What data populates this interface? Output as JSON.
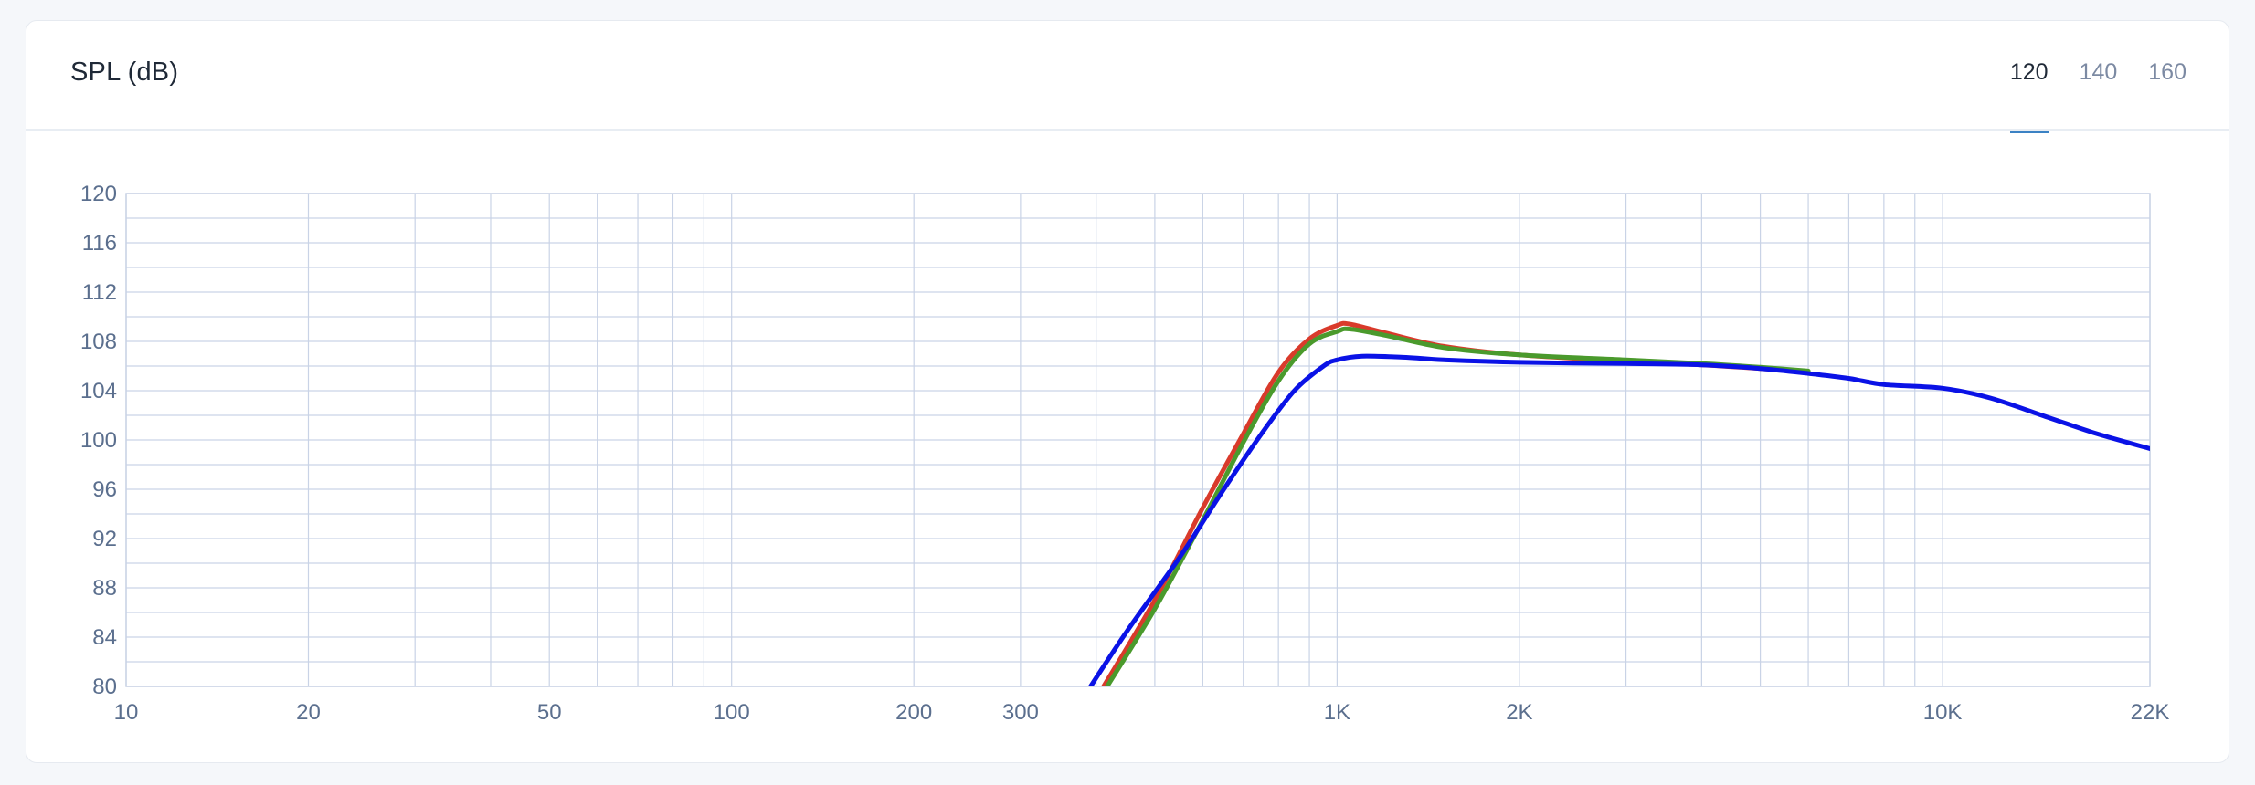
{
  "card": {
    "title": "SPL (dB)",
    "tabs": [
      {
        "label": "120",
        "active": true
      },
      {
        "label": "140",
        "active": false
      },
      {
        "label": "160",
        "active": false
      }
    ]
  },
  "chart_data": {
    "type": "line",
    "title": "SPL (dB)",
    "xscale": "log",
    "xlim": [
      10,
      22000
    ],
    "ylim": [
      80,
      120
    ],
    "grid": true,
    "colors": {
      "grid": "#c9d3e6",
      "tick_text": "#5b6f8e"
    },
    "x_major_ticks": [
      {
        "value": 10,
        "label": "10"
      },
      {
        "value": 20,
        "label": "20"
      },
      {
        "value": 50,
        "label": "50"
      },
      {
        "value": 100,
        "label": "100"
      },
      {
        "value": 200,
        "label": "200"
      },
      {
        "value": 300,
        "label": "300"
      },
      {
        "value": 1000,
        "label": "1K"
      },
      {
        "value": 2000,
        "label": "2K"
      },
      {
        "value": 10000,
        "label": "10K"
      },
      {
        "value": 22000,
        "label": "22K"
      }
    ],
    "x_minor_ticks": [
      30,
      40,
      60,
      70,
      80,
      90,
      400,
      500,
      600,
      700,
      800,
      900,
      3000,
      4000,
      5000,
      6000,
      7000,
      8000,
      9000
    ],
    "y_ticks": [
      80,
      84,
      88,
      92,
      96,
      100,
      104,
      108,
      112,
      116,
      120
    ],
    "y_minor_ticks": [
      82,
      86,
      90,
      94,
      98,
      102,
      106,
      110,
      114,
      118
    ],
    "series": [
      {
        "color": "#d93a2b",
        "points": [
          [
            400,
            79.0
          ],
          [
            500,
            87.0
          ],
          [
            600,
            94.5
          ],
          [
            700,
            100.5
          ],
          [
            800,
            105.5
          ],
          [
            900,
            108.2
          ],
          [
            1000,
            109.3
          ],
          [
            1050,
            109.4
          ],
          [
            1200,
            108.7
          ],
          [
            1500,
            107.6
          ],
          [
            2000,
            106.9
          ],
          [
            3000,
            106.4
          ],
          [
            4000,
            106.1
          ],
          [
            5000,
            105.8
          ],
          [
            6000,
            105.5
          ]
        ]
      },
      {
        "color": "#4a9a2c",
        "points": [
          [
            405,
            79.0
          ],
          [
            500,
            86.3
          ],
          [
            600,
            93.5
          ],
          [
            700,
            99.8
          ],
          [
            800,
            104.8
          ],
          [
            900,
            107.8
          ],
          [
            1000,
            108.8
          ],
          [
            1050,
            109.0
          ],
          [
            1200,
            108.5
          ],
          [
            1500,
            107.5
          ],
          [
            2000,
            106.9
          ],
          [
            3000,
            106.5
          ],
          [
            4000,
            106.2
          ],
          [
            5000,
            105.9
          ],
          [
            6000,
            105.6
          ]
        ]
      },
      {
        "color": "#0a12e6",
        "points": [
          [
            380,
            79.0
          ],
          [
            450,
            84.5
          ],
          [
            550,
            90.5
          ],
          [
            650,
            96.0
          ],
          [
            750,
            100.5
          ],
          [
            850,
            104.0
          ],
          [
            950,
            106.0
          ],
          [
            1000,
            106.5
          ],
          [
            1100,
            106.8
          ],
          [
            1300,
            106.7
          ],
          [
            1500,
            106.5
          ],
          [
            2000,
            106.3
          ],
          [
            3000,
            106.2
          ],
          [
            4000,
            106.1
          ],
          [
            5000,
            105.8
          ],
          [
            6000,
            105.4
          ],
          [
            7000,
            105.0
          ],
          [
            8000,
            104.5
          ],
          [
            10000,
            104.2
          ],
          [
            12000,
            103.4
          ],
          [
            15000,
            101.8
          ],
          [
            18000,
            100.5
          ],
          [
            22000,
            99.3
          ]
        ]
      }
    ]
  }
}
